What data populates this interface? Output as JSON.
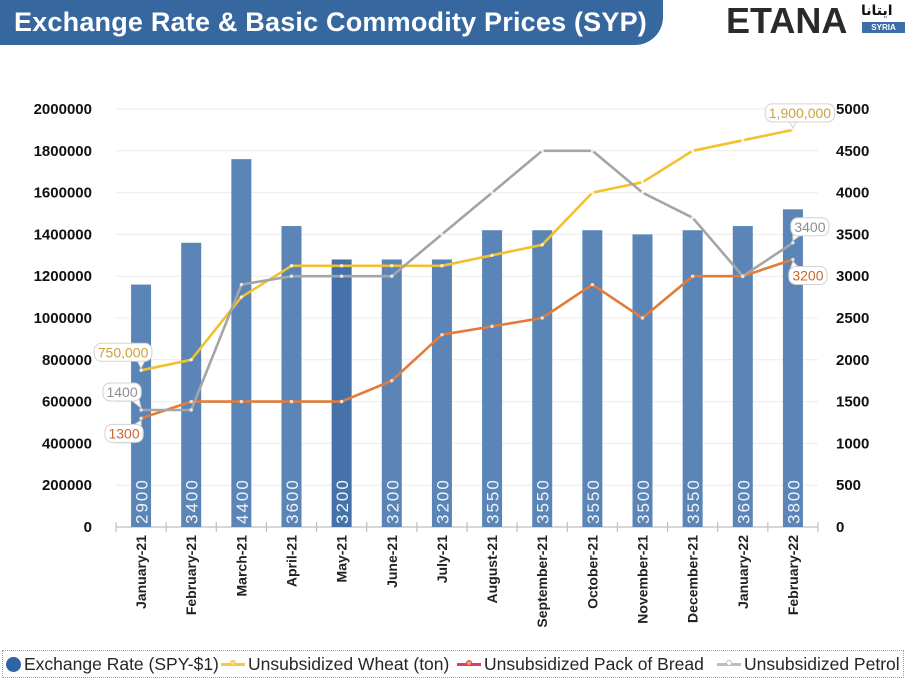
{
  "brand": {
    "name": "ETANA",
    "arabic_name": "ايتانا",
    "country": "SYRIA"
  },
  "chart_data": {
    "type": "bar+line",
    "title": "Exchange Rate & Basic Commodity Prices (SYP)",
    "xlabel": "",
    "ylabel_left": "",
    "ylabel_right": "",
    "grid": true,
    "legend_position": "bottom",
    "categories": [
      "January-21",
      "February-21",
      "March-21",
      "April-21",
      "May-21",
      "June-21",
      "July-21",
      "August-21",
      "September-21",
      "October-21",
      "November-21",
      "December-21",
      "January-22",
      "February-22"
    ],
    "y_left": {
      "min": 0,
      "max": 2000000,
      "ticks": [
        "0",
        "200000",
        "400000",
        "600000",
        "800000",
        "1000000",
        "1200000",
        "1400000",
        "1600000",
        "1800000",
        "2000000"
      ]
    },
    "y_right": {
      "min": 0,
      "max": 5000,
      "ticks": [
        "0",
        "500",
        "1000",
        "1500",
        "2000",
        "2500",
        "3000",
        "3500",
        "4000",
        "4500",
        "5000"
      ]
    },
    "series": [
      {
        "name": "Exchange Rate (SPY-$1)",
        "type": "bar",
        "axis": "right",
        "color": "#5a85b6",
        "highlight_index": 4,
        "highlight_color": "#4573a9",
        "label_color": "#eef3f9",
        "legend_color": "#2e64a3",
        "show_value_labels": true,
        "values": [
          2900,
          3400,
          4400,
          3600,
          3200,
          3200,
          3200,
          3550,
          3550,
          3550,
          3500,
          3550,
          3600,
          3800
        ]
      },
      {
        "name": "Unsubsidized Wheat (ton)",
        "type": "line",
        "axis": "left",
        "color": "#f2c12e",
        "label_color": "#c9a33b",
        "legend_color": "#f5c842",
        "legend_dot": "#f7dc86",
        "values": [
          750000,
          800000,
          1100000,
          1250000,
          1250000,
          1250000,
          1250000,
          1300000,
          1350000,
          1600000,
          1650000,
          1800000,
          1850000,
          1900000
        ],
        "data_labels": [
          {
            "index": 0,
            "text": "750,000"
          },
          {
            "index": 13,
            "text": "1,900,000"
          }
        ]
      },
      {
        "name": "Unsubsidized Pack of Bread",
        "type": "line",
        "axis": "right",
        "color": "#e47b3a",
        "label_color": "#c8682f",
        "legend_color": "#e23a6a",
        "legend_dot": "#f0a05a",
        "values": [
          1300,
          1500,
          1500,
          1500,
          1500,
          1750,
          2300,
          2400,
          2500,
          2900,
          2500,
          3000,
          3000,
          3200
        ],
        "data_labels": [
          {
            "index": 0,
            "text": "1300"
          },
          {
            "index": 13,
            "text": "3200"
          }
        ]
      },
      {
        "name": "Unsubsidized Petrol",
        "type": "line",
        "axis": "right",
        "color": "#a5a5a5",
        "label_color": "#8e8e8e",
        "legend_color": "#bdbdbd",
        "legend_dot": "#ffffff",
        "values": [
          1400,
          1400,
          2900,
          3000,
          3000,
          3000,
          3500,
          4000,
          4500,
          4500,
          4000,
          3700,
          3000,
          3400
        ],
        "data_labels": [
          {
            "index": 0,
            "text": "1400"
          },
          {
            "index": 13,
            "text": "3400"
          }
        ]
      }
    ]
  }
}
